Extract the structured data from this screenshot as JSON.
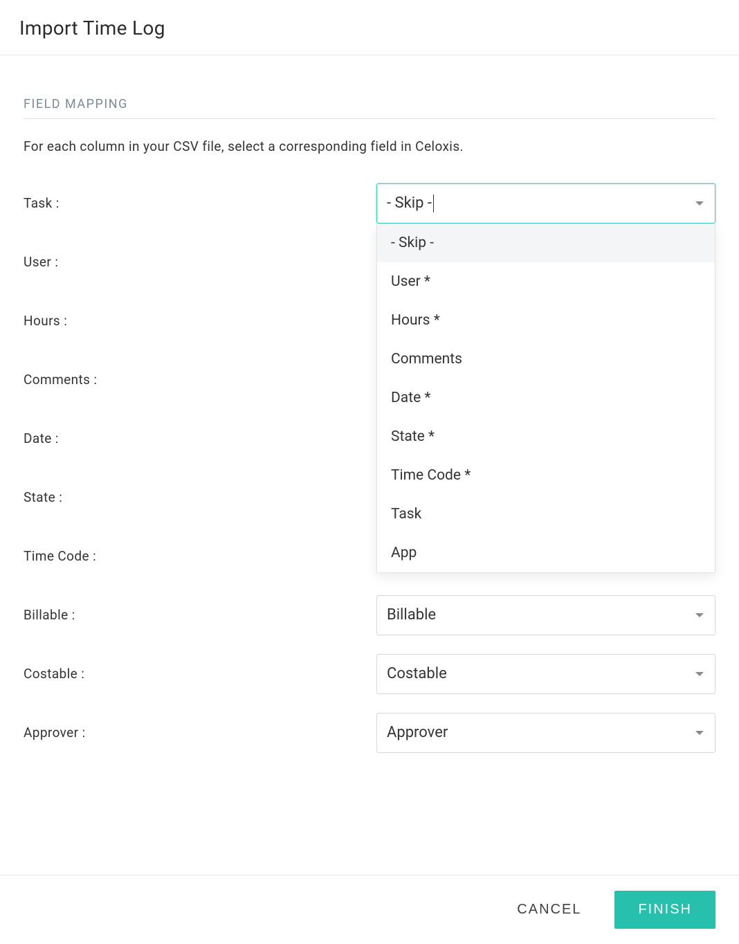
{
  "page_title": "Import Time Log",
  "section_title": "FIELD MAPPING",
  "section_subtitle": "For each column in your CSV file, select a corresponding field in Celoxis.",
  "colors": {
    "accent": "#26c0ad",
    "border": "#d6d6d6",
    "section_title": "#7b8b99",
    "text": "#333333",
    "dropdown_highlight": "#f4f5f7"
  },
  "fields": [
    {
      "label": "Task :",
      "selected": "- Skip -",
      "active": true
    },
    {
      "label": "User :",
      "selected": "",
      "active": false
    },
    {
      "label": "Hours :",
      "selected": "",
      "active": false
    },
    {
      "label": "Comments :",
      "selected": "",
      "active": false
    },
    {
      "label": "Date :",
      "selected": "",
      "active": false
    },
    {
      "label": "State :",
      "selected": "",
      "active": false
    },
    {
      "label": "Time Code :",
      "selected": "",
      "active": false
    },
    {
      "label": "Billable :",
      "selected": "Billable",
      "active": false
    },
    {
      "label": "Costable :",
      "selected": "Costable",
      "active": false
    },
    {
      "label": "Approver :",
      "selected": "Approver",
      "active": false
    }
  ],
  "dropdown_options": [
    "- Skip -",
    "User *",
    "Hours *",
    "Comments",
    "Date *",
    "State *",
    "Time Code *",
    "Task",
    "App"
  ],
  "dropdown_highlight_index": 0,
  "footer": {
    "cancel": "CANCEL",
    "finish": "FINISH"
  }
}
